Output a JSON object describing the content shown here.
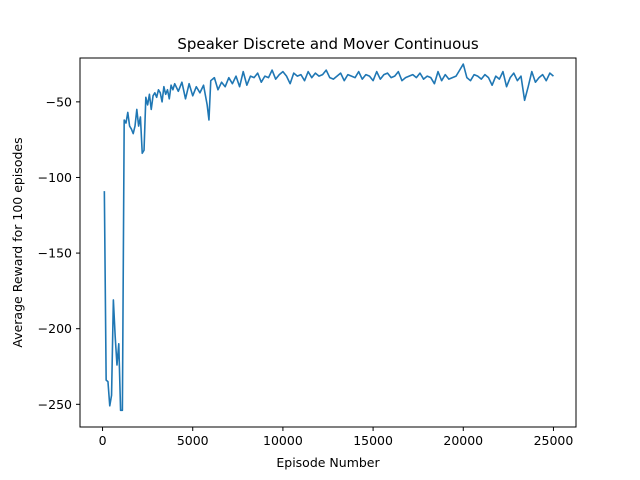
{
  "chart_data": {
    "type": "line",
    "title": "Speaker Discrete and Mover Continuous",
    "xlabel": "Episode Number",
    "ylabel": "Average Reward for 100 episodes",
    "xlim": [
      -1250,
      26250
    ],
    "ylim": [
      -265,
      -21
    ],
    "xticks": [
      0,
      5000,
      10000,
      15000,
      20000,
      25000
    ],
    "yticks": [
      -250,
      -200,
      -150,
      -100,
      -50
    ],
    "grid": false,
    "legend": "none",
    "series": [
      {
        "color": "#1f77b4",
        "x": [
          100,
          200,
          300,
          400,
          500,
          600,
          700,
          800,
          900,
          1000,
          1100,
          1200,
          1300,
          1400,
          1500,
          1600,
          1700,
          1800,
          1900,
          2000,
          2100,
          2200,
          2300,
          2400,
          2500,
          2600,
          2700,
          2800,
          2900,
          3000,
          3100,
          3200,
          3300,
          3400,
          3500,
          3600,
          3700,
          3800,
          3900,
          4000,
          4200,
          4400,
          4600,
          4800,
          5000,
          5200,
          5400,
          5600,
          5800,
          5900,
          6000,
          6200,
          6400,
          6600,
          6800,
          7000,
          7200,
          7400,
          7600,
          7800,
          8000,
          8200,
          8400,
          8600,
          8800,
          9000,
          9200,
          9400,
          9600,
          9800,
          10000,
          10200,
          10400,
          10600,
          10800,
          11000,
          11200,
          11400,
          11600,
          11800,
          12000,
          12200,
          12400,
          12600,
          12800,
          13000,
          13200,
          13400,
          13600,
          13800,
          14000,
          14200,
          14400,
          14600,
          14800,
          15000,
          15200,
          15400,
          15600,
          15800,
          16000,
          16200,
          16400,
          16600,
          16800,
          17000,
          17200,
          17400,
          17600,
          17800,
          18000,
          18200,
          18400,
          18600,
          18800,
          19000,
          19200,
          19400,
          19600,
          19800,
          20000,
          20200,
          20400,
          20600,
          20800,
          21000,
          21200,
          21400,
          21600,
          21800,
          22000,
          22200,
          22400,
          22600,
          22800,
          23000,
          23200,
          23400,
          23600,
          23800,
          24000,
          24200,
          24400,
          24600,
          24800,
          25000
        ],
        "y": [
          -109,
          -234,
          -235,
          -251,
          -244,
          -181,
          -205,
          -224,
          -210,
          -254,
          -254,
          -62,
          -64,
          -57,
          -66,
          -68,
          -71,
          -66,
          -55,
          -66,
          -60,
          -84,
          -82,
          -47,
          -52,
          -45,
          -55,
          -46,
          -44,
          -47,
          -42,
          -44,
          -50,
          -40,
          -45,
          -42,
          -48,
          -39,
          -42,
          -38,
          -43,
          -37,
          -48,
          -38,
          -46,
          -40,
          -44,
          -39,
          -52,
          -62,
          -36,
          -34,
          -42,
          -37,
          -40,
          -34,
          -38,
          -33,
          -40,
          -30,
          -39,
          -33,
          -34,
          -31,
          -37,
          -33,
          -34,
          -29,
          -35,
          -32,
          -30,
          -33,
          -38,
          -31,
          -33,
          -32,
          -36,
          -30,
          -34,
          -31,
          -33,
          -32,
          -29,
          -34,
          -35,
          -33,
          -31,
          -36,
          -32,
          -33,
          -34,
          -30,
          -35,
          -32,
          -33,
          -36,
          -30,
          -35,
          -32,
          -31,
          -34,
          -33,
          -30,
          -36,
          -34,
          -33,
          -32,
          -34,
          -31,
          -35,
          -33,
          -34,
          -38,
          -30,
          -36,
          -32,
          -35,
          -34,
          -33,
          -29,
          -25,
          -34,
          -36,
          -32,
          -33,
          -35,
          -32,
          -34,
          -39,
          -33,
          -35,
          -30,
          -40,
          -34,
          -31,
          -36,
          -33,
          -49,
          -40,
          -30,
          -37,
          -34,
          -32,
          -36,
          -31,
          -33
        ]
      }
    ]
  }
}
